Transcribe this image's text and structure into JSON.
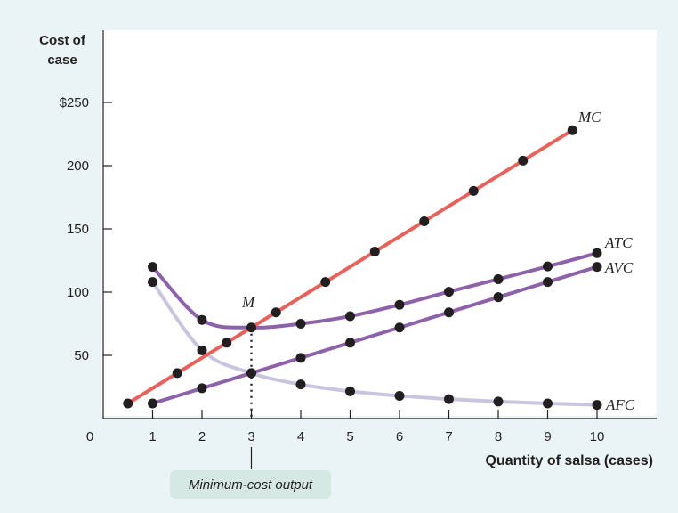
{
  "chart_data": {
    "type": "line",
    "ylabel_line1": "Cost of",
    "ylabel_line2": "case",
    "xlabel": "Quantity of salsa (cases)",
    "xlim": [
      0,
      11
    ],
    "ylim": [
      0,
      250
    ],
    "x_ticks": [
      "0",
      "1",
      "2",
      "3",
      "4",
      "5",
      "6",
      "7",
      "8",
      "9",
      "10"
    ],
    "y_ticks": [
      "$250",
      "200",
      "150",
      "100",
      "50"
    ],
    "y_tick_values": [
      250,
      200,
      150,
      100,
      50
    ],
    "series": [
      {
        "name": "MC",
        "color": "#e8625c",
        "points": [
          [
            0.5,
            12
          ],
          [
            1.5,
            36
          ],
          [
            2.5,
            60
          ],
          [
            3.5,
            84
          ],
          [
            4.5,
            108
          ],
          [
            5.5,
            132
          ],
          [
            6.5,
            156
          ],
          [
            7.5,
            180
          ],
          [
            8.5,
            204
          ],
          [
            9.5,
            228
          ]
        ]
      },
      {
        "name": "ATC",
        "color": "#8e62aa",
        "points": [
          [
            1,
            120
          ],
          [
            2,
            78
          ],
          [
            3,
            72
          ],
          [
            4,
            75
          ],
          [
            5,
            81
          ],
          [
            6,
            90
          ],
          [
            7,
            100.3
          ],
          [
            8,
            110.25
          ],
          [
            9,
            120.33
          ],
          [
            10,
            130.8
          ]
        ]
      },
      {
        "name": "AVC",
        "color": "#8e62aa",
        "points": [
          [
            1,
            12
          ],
          [
            2,
            24
          ],
          [
            3,
            36
          ],
          [
            4,
            48
          ],
          [
            5,
            60
          ],
          [
            6,
            72
          ],
          [
            7,
            84
          ],
          [
            8,
            96
          ],
          [
            9,
            108
          ],
          [
            10,
            120
          ]
        ]
      },
      {
        "name": "AFC",
        "color": "#c9c5df",
        "points": [
          [
            1,
            108
          ],
          [
            2,
            54
          ],
          [
            3,
            36
          ],
          [
            4,
            27
          ],
          [
            5,
            21.6
          ],
          [
            6,
            18
          ],
          [
            7,
            15.4
          ],
          [
            8,
            13.5
          ],
          [
            9,
            12
          ],
          [
            10,
            10.8
          ]
        ]
      }
    ],
    "point_M": {
      "label": "M",
      "x": 3,
      "y": 72
    },
    "annotation": "Minimum-cost output"
  }
}
